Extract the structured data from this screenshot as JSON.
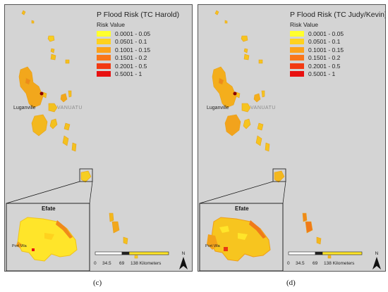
{
  "colors": {
    "background": "#d4d4d4",
    "risk": [
      "#ffff2e",
      "#ffd21e",
      "#fca21a",
      "#f9761a",
      "#f23a12",
      "#e81010"
    ]
  },
  "panels": [
    {
      "id": "c",
      "legend_title": "P Flood Risk (TC Harold)",
      "legend_subtitle": "Risk Value",
      "legend_items": [
        "0.0001 - 0.05",
        "0.0501 - 0.1",
        "0.1001 - 0.15",
        "0.1501 - 0.2",
        "0.2001 - 0.5",
        "0.5001 - 1"
      ],
      "labels": {
        "city": "Luganville",
        "country": "VANUATU",
        "inset": "Efate",
        "inset_city": "Port Vila"
      },
      "scale": {
        "ticks": [
          "0",
          "34.5",
          "69",
          "138 Kilometers"
        ]
      },
      "north": "N",
      "caption": "(c)"
    },
    {
      "id": "d",
      "legend_title": "P Flood Risk (TC Judy/Kevin)",
      "legend_subtitle": "Risk Value",
      "legend_items": [
        "0.0001 - 0.05",
        "0.0501 - 0.1",
        "0.1001 - 0.15",
        "0.1501 - 0.2",
        "0.2001 - 0.5",
        "0.5001 - 1"
      ],
      "labels": {
        "city": "Luganville",
        "country": "VANUATU",
        "inset": "Efate",
        "inset_city": "Port Vila"
      },
      "scale": {
        "ticks": [
          "0",
          "34.5",
          "69",
          "138 Kilometers"
        ]
      },
      "north": "N",
      "caption": "(d)"
    }
  ]
}
